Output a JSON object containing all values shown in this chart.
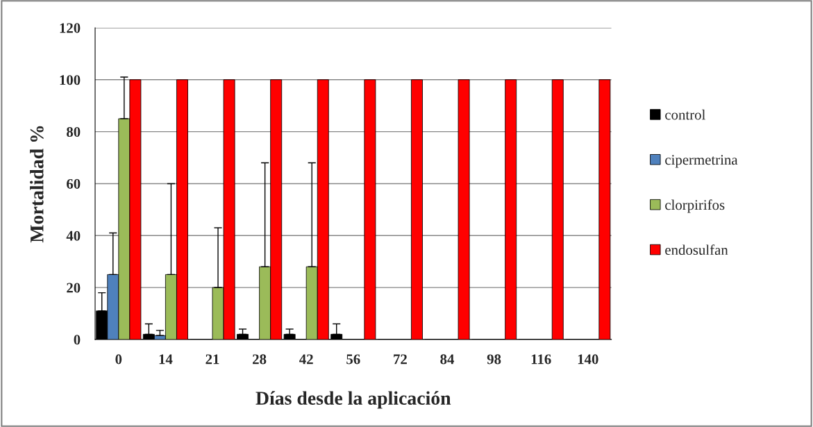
{
  "chart_data": {
    "type": "bar",
    "xlabel": "Días desde la aplicación",
    "ylabel": "Mortalidad %",
    "categories": [
      "0",
      "14",
      "21",
      "28",
      "42",
      "56",
      "72",
      "84",
      "98",
      "116",
      "140"
    ],
    "series": [
      {
        "name": "control",
        "color": "#000000",
        "values": [
          11,
          2,
          0,
          2,
          2,
          2,
          0,
          0,
          0,
          0,
          0
        ],
        "errors": [
          [
            11,
            18
          ],
          [
            2,
            6
          ],
          null,
          [
            2,
            4
          ],
          [
            2,
            4
          ],
          [
            2,
            6
          ],
          null,
          null,
          null,
          null,
          null
        ]
      },
      {
        "name": "cipermetrina",
        "color": "#4f81bd",
        "values": [
          25,
          1.5,
          0,
          0,
          0,
          0,
          0,
          0,
          0,
          0,
          0
        ],
        "errors": [
          [
            25,
            41
          ],
          [
            1.5,
            3.5
          ],
          null,
          null,
          null,
          null,
          null,
          null,
          null,
          null,
          null
        ]
      },
      {
        "name": "clorpirifos",
        "color": "#9bbb59",
        "values": [
          85,
          25,
          20,
          28,
          28,
          0,
          0,
          0,
          0,
          0,
          0
        ],
        "errors": [
          [
            85,
            101
          ],
          [
            25,
            60
          ],
          [
            20,
            43
          ],
          [
            28,
            68
          ],
          [
            28,
            68
          ],
          null,
          null,
          null,
          null,
          null,
          null
        ]
      },
      {
        "name": "endosulfan",
        "color": "#ff0000",
        "values": [
          100,
          100,
          100,
          100,
          100,
          100,
          100,
          100,
          100,
          100,
          100
        ]
      }
    ],
    "ylim": [
      0,
      120
    ],
    "yticks": [
      0,
      20,
      40,
      60,
      80,
      100,
      120
    ],
    "grid": "y",
    "legend": "right"
  }
}
